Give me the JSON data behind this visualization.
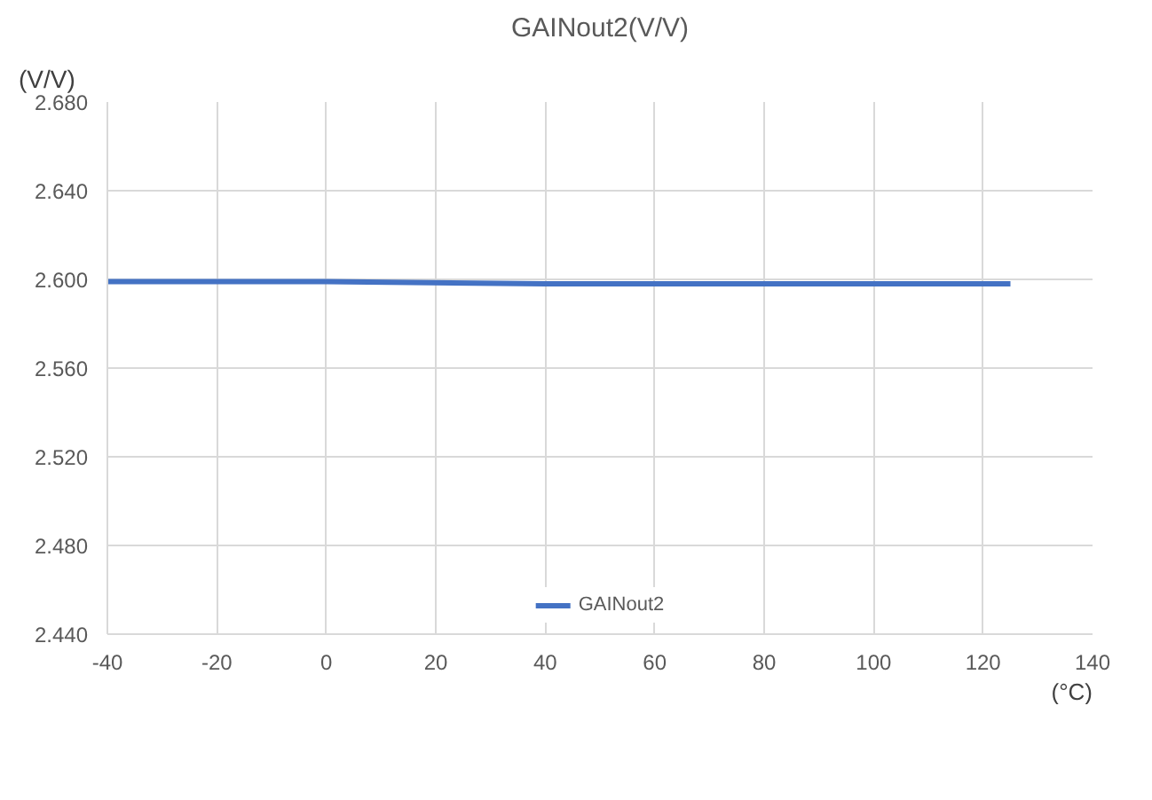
{
  "chart_data": {
    "type": "line",
    "title": "GAINout2(V/V)",
    "ylabel": "(V/V)",
    "xlabel": "(°C)",
    "x": [
      -40,
      0,
      40,
      80,
      125
    ],
    "series": [
      {
        "name": "GAINout2",
        "color": "#4472c4",
        "values": [
          2.599,
          2.599,
          2.598,
          2.598,
          2.598
        ]
      }
    ],
    "xlim": [
      -40,
      140
    ],
    "xticks": [
      -40,
      -20,
      0,
      20,
      40,
      60,
      80,
      100,
      120,
      140
    ],
    "ylim": [
      2.44,
      2.68
    ],
    "yticks": [
      {
        "value": 2.44,
        "label": "2.440"
      },
      {
        "value": 2.48,
        "label": "2.480"
      },
      {
        "value": 2.52,
        "label": "2.520"
      },
      {
        "value": 2.56,
        "label": "2.560"
      },
      {
        "value": 2.6,
        "label": "2.600"
      },
      {
        "value": 2.64,
        "label": "2.640"
      },
      {
        "value": 2.68,
        "label": "2.680"
      }
    ],
    "grid": true,
    "legend": "bottom",
    "marker": "none",
    "line_style": "solid"
  }
}
